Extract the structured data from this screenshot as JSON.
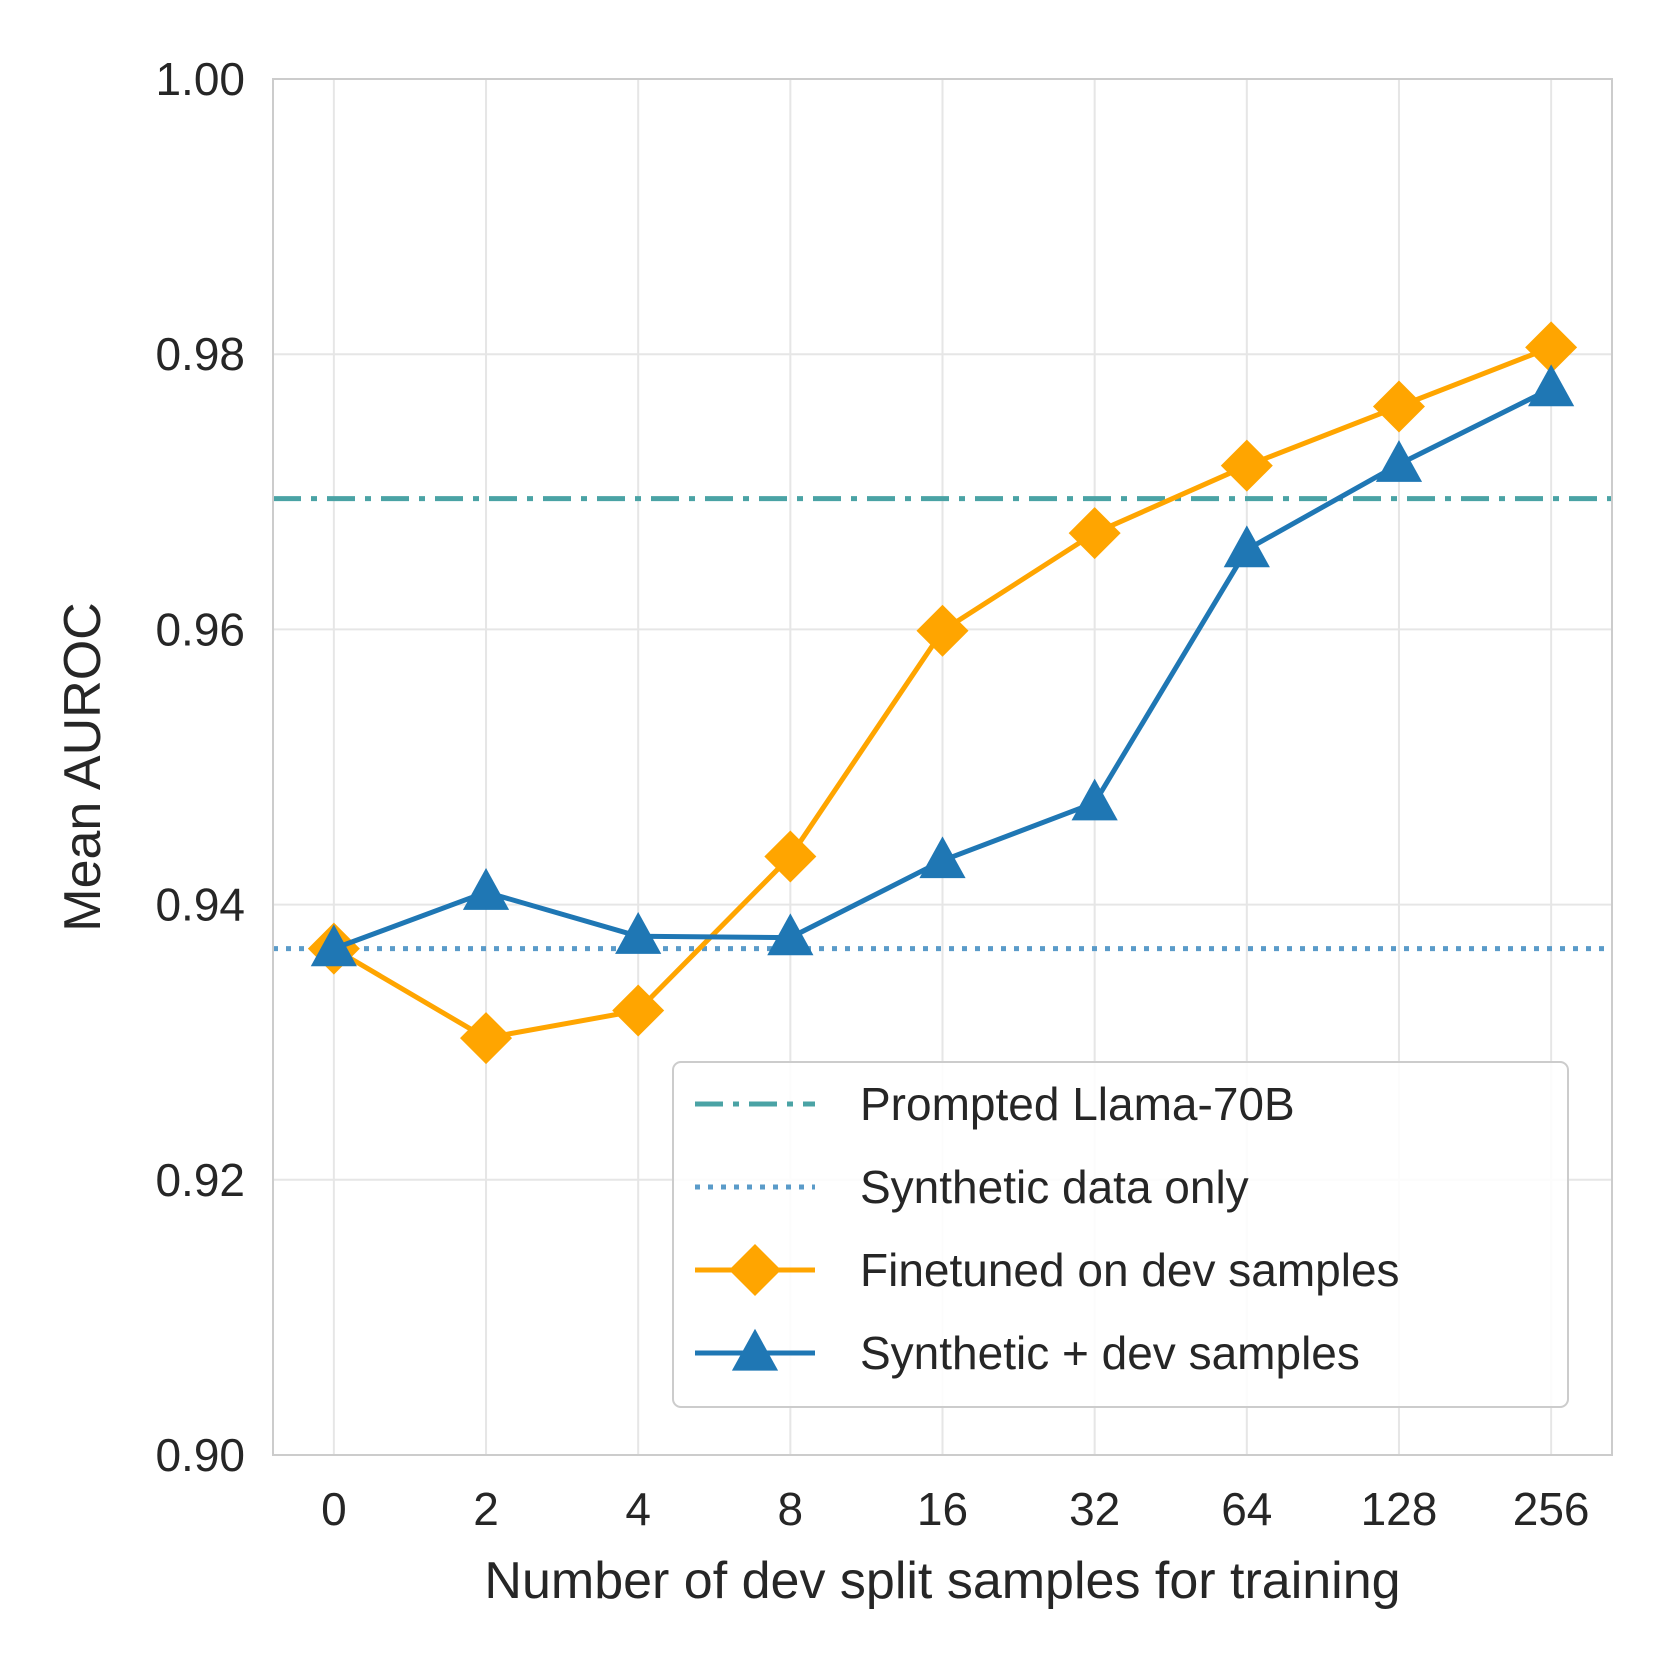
{
  "chart_data": {
    "type": "line",
    "xlabel": "Number of dev split samples for training",
    "ylabel": "Mean AUROC",
    "categories": [
      "0",
      "2",
      "4",
      "8",
      "16",
      "32",
      "64",
      "128",
      "256"
    ],
    "ylim": [
      0.9,
      1.0
    ],
    "yticks": [
      "0.90",
      "0.92",
      "0.94",
      "0.96",
      "0.98",
      "1.00"
    ],
    "grid": true,
    "legend_position": "bottom-right",
    "reference_lines": [
      {
        "name": "Prompted Llama-70B",
        "value": 0.9695,
        "style": "dashdot",
        "color": "#4aa3a5"
      },
      {
        "name": "Synthetic data only",
        "value": 0.9368,
        "style": "dotted",
        "color": "#5a9bc9"
      }
    ],
    "series": [
      {
        "name": "Finetuned on dev samples",
        "marker": "diamond",
        "color": "#ffa500",
        "values": [
          0.9368,
          0.9303,
          0.9323,
          0.9435,
          0.9599,
          0.967,
          0.9719,
          0.9762,
          0.9805
        ]
      },
      {
        "name": "Synthetic + dev samples",
        "marker": "triangle",
        "color": "#1f77b4",
        "values": [
          0.9368,
          0.9409,
          0.9377,
          0.9376,
          0.9432,
          0.9474,
          0.9658,
          0.972,
          0.9775
        ]
      }
    ]
  }
}
